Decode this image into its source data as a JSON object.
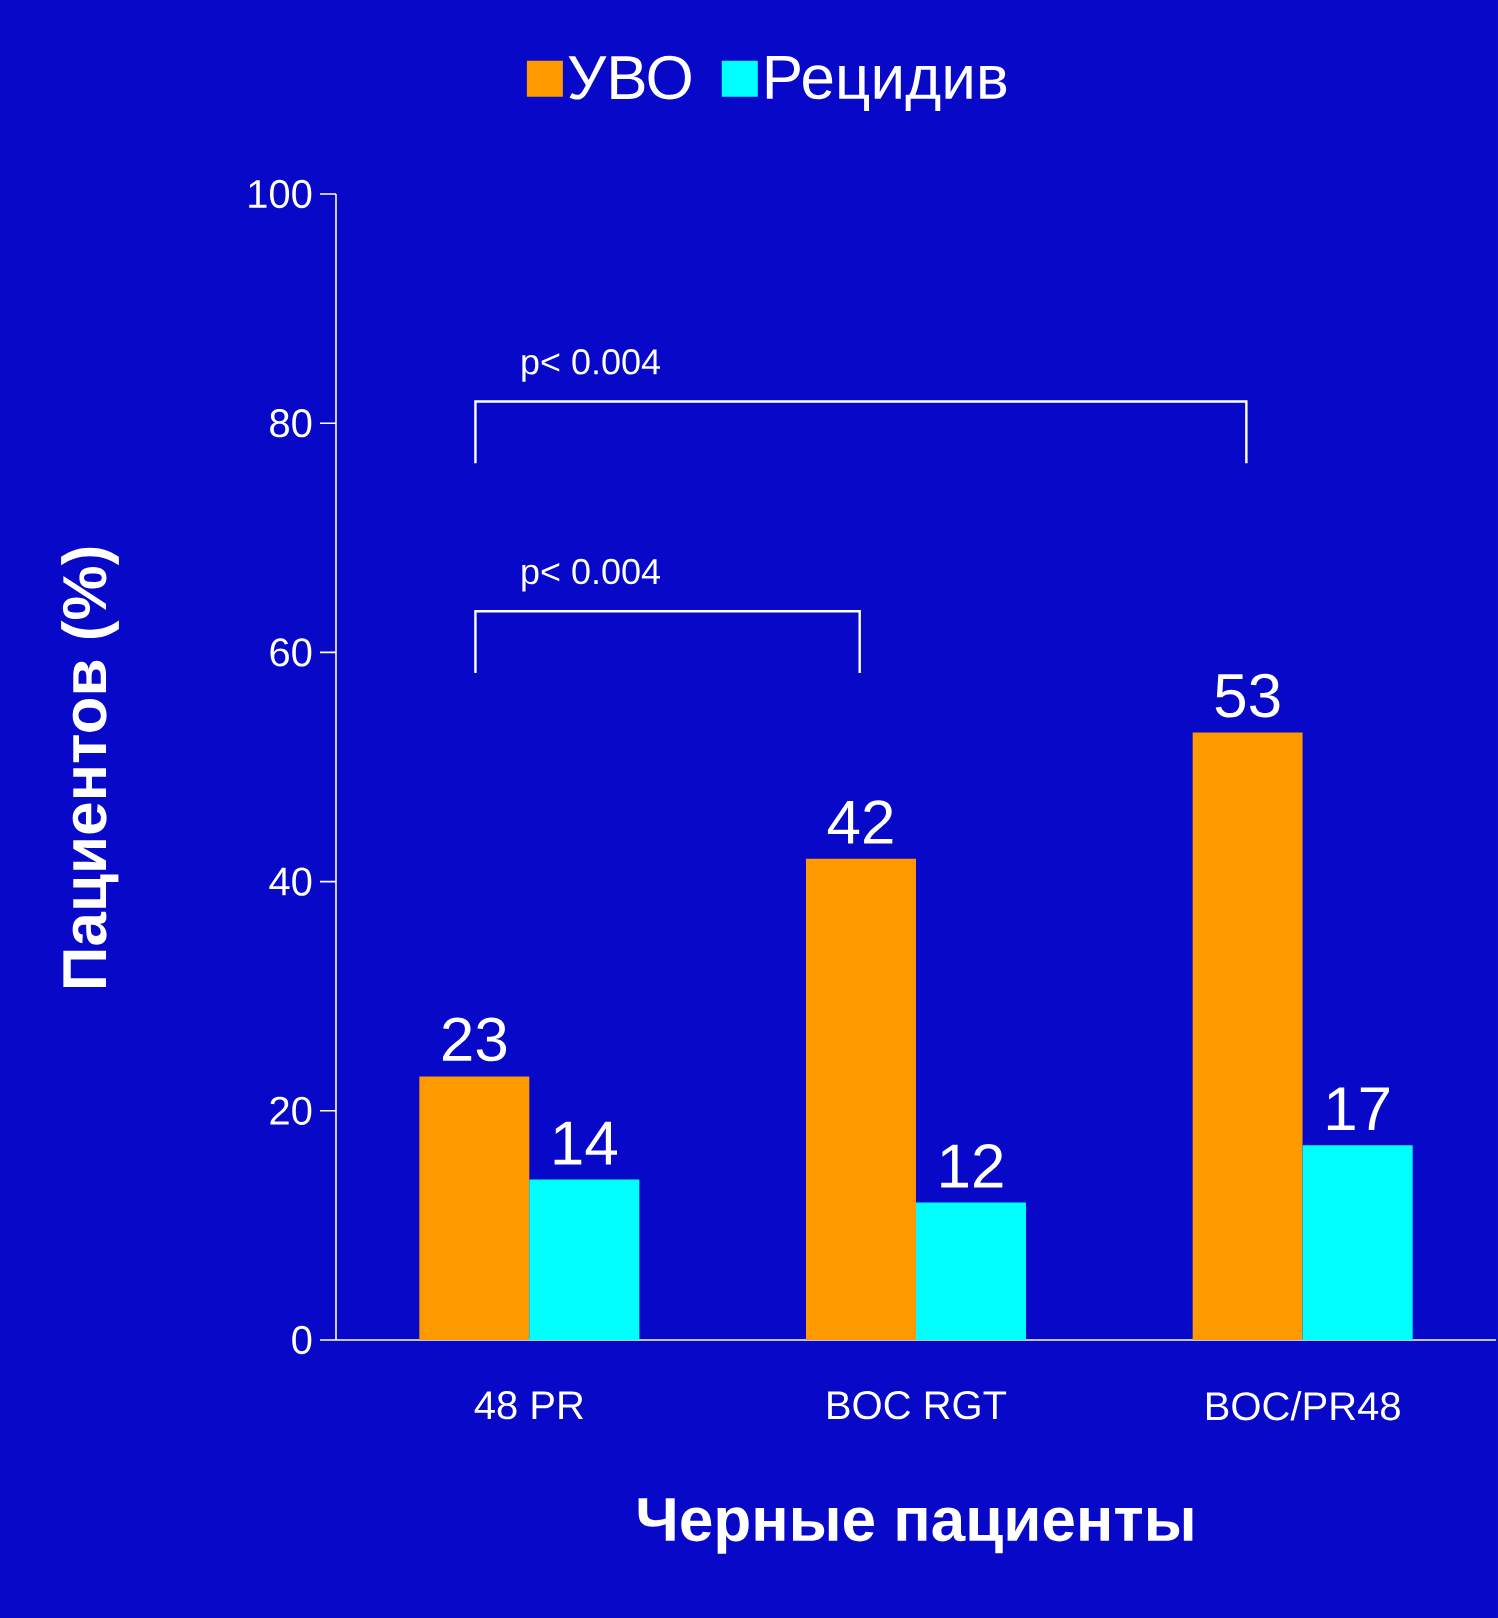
{
  "chart_data": {
    "type": "bar",
    "xlabel": "Черные пациенты",
    "ylabel": "Пациентов (%)",
    "categories": [
      "48 PR",
      "BOC RGT",
      "BOC/PR48"
    ],
    "series": [
      {
        "name": "УВО",
        "color": "#ff9900",
        "values": [
          23,
          42,
          53
        ]
      },
      {
        "name": "Рецидив",
        "color": "#00ffff",
        "values": [
          14,
          12,
          17
        ]
      }
    ],
    "ylim": [
      0,
      100
    ],
    "yticks": [
      0,
      20,
      40,
      60,
      80,
      100
    ],
    "data_labels": true,
    "legend": "top",
    "grid": false,
    "annotations": [
      "p< 0.004",
      "p< 0.004"
    ]
  }
}
